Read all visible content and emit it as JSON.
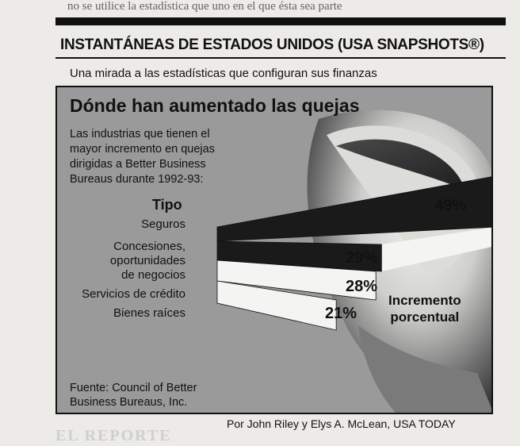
{
  "page": {
    "top_text": "no se utilice la estadística que uno en el que ésta sea parte",
    "header_title": "INSTANTÁNEAS DE ESTADOS UNIDOS (USA SNAPSHOTS®)",
    "subtitle": "Una mirada a las estadísticas que configuran sus finanzas",
    "byline": "Por John Riley y Elys A. McLean, USA TODAY",
    "bottom_text": "EL REPORTE"
  },
  "chart_data": {
    "type": "bar",
    "title": "Dónde han aumentado las quejas",
    "description": "Las industrias que tienen el mayor incremento en quejas dirigidas a Better Business Bureaus durante 1992-93:",
    "category_header": "Tipo",
    "categories": [
      "Seguros",
      "Concesiones, oportunidades de negocios",
      "Servicios de crédito",
      "Bienes raíces"
    ],
    "category_lines": [
      [
        "Seguros"
      ],
      [
        "Concesiones,",
        "oportunidades",
        "de negocios"
      ],
      [
        "Servicios de crédito"
      ],
      [
        "Bienes raíces"
      ]
    ],
    "values": [
      49,
      29,
      28,
      21
    ],
    "value_labels": [
      "49%",
      "29%",
      "28%",
      "21%"
    ],
    "value_axis_label": "Incremento porcentual",
    "value_axis_lines": [
      "Incremento",
      "porcentual"
    ],
    "source": "Fuente: Council of Better Business Bureaus, Inc.",
    "source_lines": [
      "Fuente: Council of Better",
      "Business Bureaus, Inc."
    ],
    "colors": {
      "dark_bar": "#1a1a1a",
      "light_bar": "#f4f4f2",
      "panel": "#9a9a9a"
    }
  }
}
